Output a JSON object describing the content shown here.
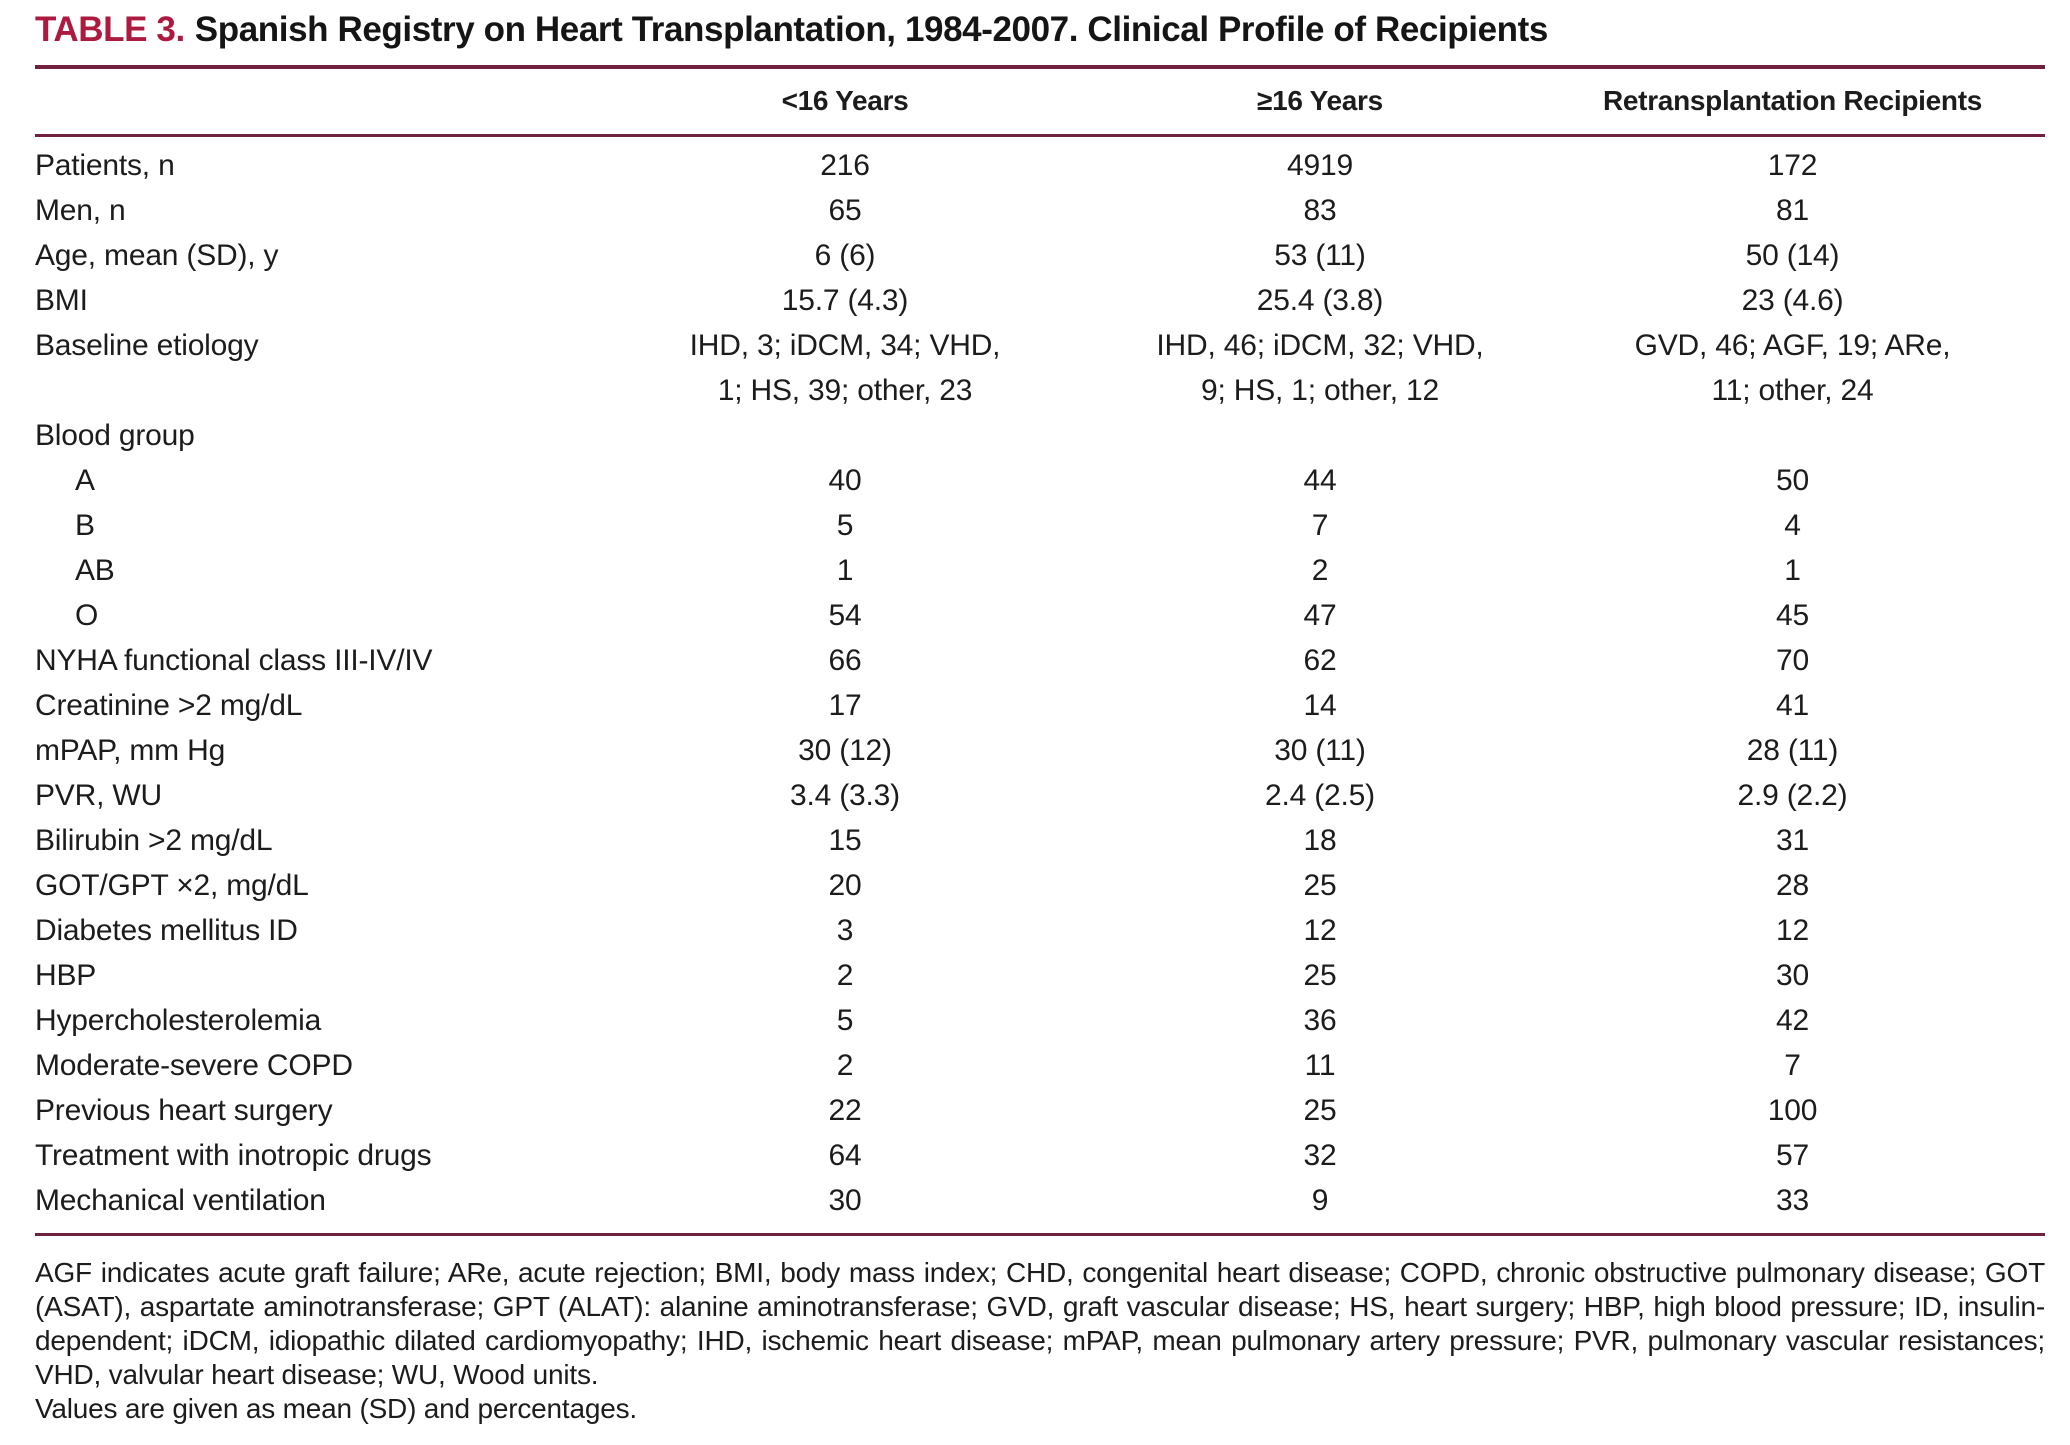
{
  "title": {
    "label": "TABLE 3.",
    "text": "Spanish Registry on Heart Transplantation, 1984-2007. Clinical Profile of Recipients"
  },
  "colors": {
    "accent_red": "#AD1A3F",
    "rule_maroon": "#70213F",
    "text_ink": "#1C1C1C"
  },
  "table": {
    "columns": [
      "<16 Years",
      "≥16 Years",
      "Retransplantation Recipients"
    ],
    "rows": [
      {
        "label": "Patients, n",
        "indent": false,
        "values": [
          "216",
          "4919",
          "172"
        ]
      },
      {
        "label": "Men, n",
        "indent": false,
        "values": [
          "65",
          "83",
          "81"
        ]
      },
      {
        "label": "Age, mean (SD), y",
        "indent": false,
        "values": [
          "6 (6)",
          "53 (11)",
          "50 (14)"
        ]
      },
      {
        "label": "BMI",
        "indent": false,
        "values": [
          "15.7 (4.3)",
          "25.4 (3.8)",
          "23 (4.6)"
        ]
      },
      {
        "label": "Baseline etiology",
        "indent": false,
        "values": [
          "IHD, 3; iDCM, 34; VHD,\n1; HS, 39; other, 23",
          "IHD, 46; iDCM, 32; VHD,\n9; HS, 1; other, 12",
          "GVD, 46; AGF, 19; ARe,\n11; other, 24"
        ]
      },
      {
        "label": "Blood group",
        "indent": false,
        "values": [
          "",
          "",
          ""
        ]
      },
      {
        "label": "A",
        "indent": true,
        "values": [
          "40",
          "44",
          "50"
        ]
      },
      {
        "label": "B",
        "indent": true,
        "values": [
          "5",
          "7",
          "4"
        ]
      },
      {
        "label": "AB",
        "indent": true,
        "values": [
          "1",
          "2",
          "1"
        ]
      },
      {
        "label": "O",
        "indent": true,
        "values": [
          "54",
          "47",
          "45"
        ]
      },
      {
        "label": "NYHA functional class III-IV/IV",
        "indent": false,
        "values": [
          "66",
          "62",
          "70"
        ]
      },
      {
        "label": "Creatinine >2 mg/dL",
        "indent": false,
        "values": [
          "17",
          "14",
          "41"
        ]
      },
      {
        "label": "mPAP, mm Hg",
        "indent": false,
        "values": [
          "30 (12)",
          "30 (11)",
          "28 (11)"
        ]
      },
      {
        "label": "PVR, WU",
        "indent": false,
        "values": [
          "3.4 (3.3)",
          "2.4 (2.5)",
          "2.9 (2.2)"
        ]
      },
      {
        "label": "Bilirubin >2 mg/dL",
        "indent": false,
        "values": [
          "15",
          "18",
          "31"
        ]
      },
      {
        "label": "GOT/GPT ×2, mg/dL",
        "indent": false,
        "values": [
          "20",
          "25",
          "28"
        ]
      },
      {
        "label": "Diabetes mellitus ID",
        "indent": false,
        "values": [
          "3",
          "12",
          "12"
        ]
      },
      {
        "label": "HBP",
        "indent": false,
        "values": [
          "2",
          "25",
          "30"
        ]
      },
      {
        "label": "Hypercholesterolemia",
        "indent": false,
        "values": [
          "5",
          "36",
          "42"
        ]
      },
      {
        "label": "Moderate-severe COPD",
        "indent": false,
        "values": [
          "2",
          "11",
          "7"
        ]
      },
      {
        "label": "Previous heart surgery",
        "indent": false,
        "values": [
          "22",
          "25",
          "100"
        ]
      },
      {
        "label": "Treatment with inotropic drugs",
        "indent": false,
        "values": [
          "64",
          "32",
          "57"
        ]
      },
      {
        "label": "Mechanical ventilation",
        "indent": false,
        "values": [
          "30",
          "9",
          "33"
        ]
      }
    ]
  },
  "footnote": {
    "abbreviations": "AGF indicates acute graft failure; ARe, acute rejection; BMI, body mass index; CHD, congenital heart disease; COPD, chronic obstructive pulmonary disease; GOT (ASAT), aspartate aminotransferase; GPT (ALAT): alanine aminotransferase; GVD, graft vascular disease; HS, heart surgery; HBP, high blood pressure; ID, insulin-dependent; iDCM, idiopathic dilated cardiomyopathy; IHD, ischemic heart disease; mPAP, mean pulmonary artery pressure; PVR, pulmonary vascular resistances; VHD, valvular heart disease; WU, Wood units.",
    "note": "Values are given as mean (SD) and percentages."
  }
}
